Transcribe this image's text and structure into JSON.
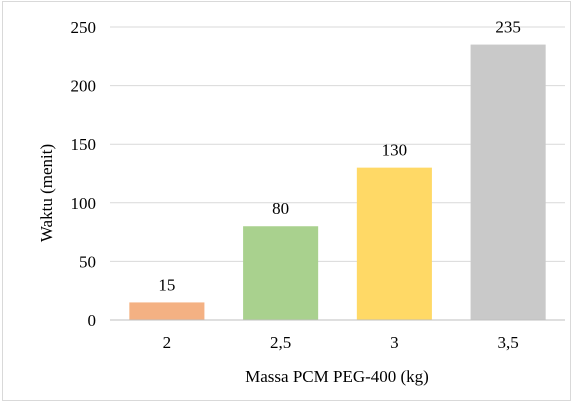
{
  "chart_data": {
    "type": "bar",
    "title": "",
    "xlabel": "Massa PCM PEG-400 (kg)",
    "ylabel": "Waktu (menit)",
    "categories": [
      "2",
      "2,5",
      "3",
      "3,5"
    ],
    "values": [
      15,
      80,
      130,
      235
    ],
    "data_labels": [
      "15",
      "80",
      "130",
      "235"
    ],
    "bar_colors": [
      "#f4b183",
      "#a9d18e",
      "#ffd966",
      "#c9c9c9"
    ],
    "ylim": [
      0,
      250
    ],
    "yticks": [
      0,
      50,
      100,
      150,
      200,
      250
    ],
    "ytick_labels": [
      "0",
      "50",
      "100",
      "150",
      "200",
      "250"
    ],
    "grid": true,
    "grid_color": "#d9d9d9",
    "legend": "none"
  }
}
